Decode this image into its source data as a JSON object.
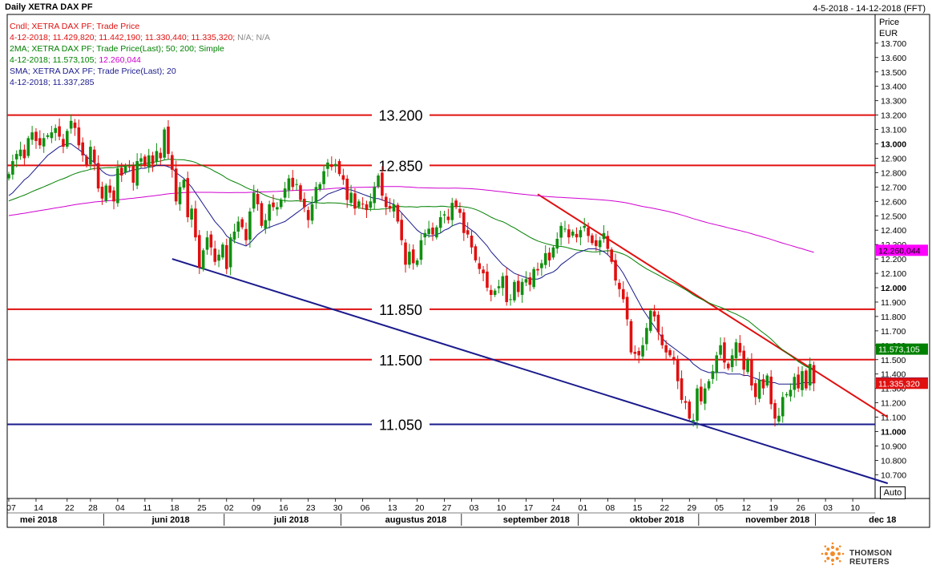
{
  "header": {
    "title": "Daily XETRA DAX PF",
    "date_range": "4-5-2018 - 14-12-2018 (FFT)"
  },
  "legend": {
    "line1": "Cndl; XETRA DAX PF; Trade Price",
    "line2_values": "4-12-2018; 11.429,820; 11.442,190; 11.330,440; 11.335,320;",
    "line2_na": "N/A; N/A",
    "line3": "2MA; XETRA DAX PF; Trade Price(Last);  50;  200; Simple",
    "line4_prefix": "4-12-2018; 11.573,105;",
    "line4_value": "12.260,044",
    "line5": "SMA; XETRA DAX PF; Trade Price(Last);  20",
    "line6": "4-12-2018; 11.337,285"
  },
  "axis": {
    "price_label": "Price",
    "currency": "EUR",
    "auto_label": "Auto"
  },
  "brand": {
    "name": "THOMSON REUTERS"
  },
  "chart_data": {
    "type": "candlestick",
    "y_range": [
      10620,
      13800
    ],
    "y_ticks": [
      {
        "v": 13700,
        "t": "13.700"
      },
      {
        "v": 13600,
        "t": "13.600"
      },
      {
        "v": 13500,
        "t": "13.500"
      },
      {
        "v": 13400,
        "t": "13.400"
      },
      {
        "v": 13300,
        "t": "13.300"
      },
      {
        "v": 13200,
        "t": "13.200"
      },
      {
        "v": 13100,
        "t": "13.100"
      },
      {
        "v": 13000,
        "t": "13.000",
        "bold": true
      },
      {
        "v": 12900,
        "t": "12.900"
      },
      {
        "v": 12800,
        "t": "12.800"
      },
      {
        "v": 12700,
        "t": "12.700"
      },
      {
        "v": 12600,
        "t": "12.600"
      },
      {
        "v": 12500,
        "t": "12.500"
      },
      {
        "v": 12400,
        "t": "12.400"
      },
      {
        "v": 12300,
        "t": "12.300"
      },
      {
        "v": 12200,
        "t": "12.200"
      },
      {
        "v": 12100,
        "t": "12.100"
      },
      {
        "v": 12000,
        "t": "12.000",
        "bold": true
      },
      {
        "v": 11900,
        "t": "11.900"
      },
      {
        "v": 11800,
        "t": "11.800"
      },
      {
        "v": 11700,
        "t": "11.700"
      },
      {
        "v": 11600,
        "t": "11.600"
      },
      {
        "v": 11500,
        "t": "11.500"
      },
      {
        "v": 11400,
        "t": "11.400"
      },
      {
        "v": 11300,
        "t": "11.300"
      },
      {
        "v": 11200,
        "t": "11.200"
      },
      {
        "v": 11100,
        "t": "11.100"
      },
      {
        "v": 11000,
        "t": "11.000",
        "bold": true
      },
      {
        "v": 10900,
        "t": "10.900"
      },
      {
        "v": 10800,
        "t": "10.800"
      },
      {
        "v": 10700,
        "t": "10.700"
      }
    ],
    "x_day_ticks": [
      {
        "d": 0,
        "t": "07"
      },
      {
        "d": 7,
        "t": "14"
      },
      {
        "d": 15,
        "t": "22"
      },
      {
        "d": 21,
        "t": "28"
      },
      {
        "d": 28,
        "t": "04"
      },
      {
        "d": 35,
        "t": "11"
      },
      {
        "d": 42,
        "t": "18"
      },
      {
        "d": 49,
        "t": "25"
      },
      {
        "d": 56,
        "t": "02"
      },
      {
        "d": 63,
        "t": "09"
      },
      {
        "d": 70,
        "t": "16"
      },
      {
        "d": 77,
        "t": "23"
      },
      {
        "d": 84,
        "t": "30"
      },
      {
        "d": 91,
        "t": "06"
      },
      {
        "d": 98,
        "t": "13"
      },
      {
        "d": 105,
        "t": "20"
      },
      {
        "d": 112,
        "t": "27"
      },
      {
        "d": 119,
        "t": "03"
      },
      {
        "d": 126,
        "t": "10"
      },
      {
        "d": 133,
        "t": "17"
      },
      {
        "d": 140,
        "t": "24"
      },
      {
        "d": 147,
        "t": "01"
      },
      {
        "d": 154,
        "t": "08"
      },
      {
        "d": 161,
        "t": "15"
      },
      {
        "d": 168,
        "t": "22"
      },
      {
        "d": 175,
        "t": "29"
      },
      {
        "d": 182,
        "t": "05"
      },
      {
        "d": 189,
        "t": "12"
      },
      {
        "d": 196,
        "t": "19"
      },
      {
        "d": 203,
        "t": "26"
      },
      {
        "d": 210,
        "t": "03"
      },
      {
        "d": 217,
        "t": "10"
      }
    ],
    "x_months": [
      {
        "d": 6,
        "t": "mei 2018"
      },
      {
        "d": 40,
        "t": "juni 2018"
      },
      {
        "d": 71,
        "t": "juli 2018"
      },
      {
        "d": 103,
        "t": "augustus 2018"
      },
      {
        "d": 134,
        "t": "september 2018"
      },
      {
        "d": 165,
        "t": "oktober 2018"
      },
      {
        "d": 196,
        "t": "november 2018"
      },
      {
        "d": 223,
        "t": "dec 18"
      }
    ],
    "x_month_dividers": [
      25,
      56,
      86,
      117,
      147,
      178,
      208
    ],
    "support_resistance": [
      {
        "value": 13200,
        "label": "13.200",
        "color": "#e01010"
      },
      {
        "value": 12850,
        "label": "12.850",
        "color": "#e01010"
      },
      {
        "value": 11850,
        "label": "11.850",
        "color": "#e01010"
      },
      {
        "value": 11500,
        "label": "11.500",
        "color": "#e01010"
      },
      {
        "value": 11050,
        "label": "11.050",
        "color": "#1a1a8c"
      }
    ],
    "trendlines": [
      {
        "color": "#e01010",
        "from": {
          "d": 136,
          "v": 12650
        },
        "to": {
          "d": 226,
          "v": 11100
        }
      },
      {
        "color": "#1a1a8c",
        "from": {
          "d": 42,
          "v": 12200
        },
        "to": {
          "d": 226,
          "v": 10640
        }
      }
    ],
    "markers": [
      {
        "value": 12260.044,
        "label": "12.260,044",
        "bg": "#ff00ff",
        "fg": "#000000"
      },
      {
        "value": 11573.105,
        "label": "11.573,105",
        "bg": "#008000",
        "fg": "#ffffff"
      },
      {
        "value": 11337.285,
        "label": "11.337,285",
        "bg": "#1a1a8c",
        "fg": "#ffffff"
      },
      {
        "value": 11335.32,
        "label": "11.335,320",
        "bg": "#e01010",
        "fg": "#ffffff"
      }
    ],
    "closes": [
      12790,
      12880,
      12930,
      12960,
      12900,
      13040,
      13080,
      13020,
      12990,
      13040,
      13060,
      13080,
      13110,
      13050,
      12980,
      13090,
      13160,
      13110,
      12990,
      12920,
      12850,
      12980,
      12870,
      12690,
      12620,
      12710,
      12660,
      12600,
      12830,
      12780,
      12850,
      12840,
      12730,
      12880,
      12900,
      12850,
      12920,
      12860,
      12950,
      12900,
      13100,
      12930,
      12820,
      12600,
      12700,
      12750,
      12490,
      12550,
      12350,
      12140,
      12260,
      12350,
      12280,
      12180,
      12230,
      12300,
      12130,
      12350,
      12390,
      12460,
      12420,
      12330,
      12530,
      12660,
      12580,
      12430,
      12470,
      12580,
      12560,
      12560,
      12610,
      12690,
      12760,
      12700,
      12720,
      12610,
      12560,
      12470,
      12580,
      12700,
      12720,
      12810,
      12870,
      12840,
      12860,
      12790,
      12750,
      12610,
      12660,
      12550,
      12600,
      12580,
      12540,
      12600,
      12700,
      12780,
      12640,
      12560,
      12550,
      12580,
      12460,
      12330,
      12160,
      12250,
      12170,
      12190,
      12330,
      12380,
      12410,
      12370,
      12420,
      12490,
      12510,
      12470,
      12590,
      12560,
      12520,
      12380,
      12370,
      12280,
      12190,
      12130,
      12100,
      12000,
      11950,
      11980,
      12010,
      12080,
      11900,
      11920,
      12040,
      11970,
      12040,
      12060,
      12020,
      12130,
      12120,
      12170,
      12240,
      12190,
      12280,
      12340,
      12430,
      12410,
      12350,
      12390,
      12350,
      12400,
      12430,
      12360,
      12310,
      12290,
      12330,
      12380,
      12270,
      12180,
      12050,
      11990,
      11920,
      11780,
      11550,
      11540,
      11530,
      11600,
      11720,
      11840,
      11800,
      11690,
      11600,
      11550,
      11530,
      11500,
      11350,
      11220,
      11200,
      11090,
      11080,
      11300,
      11210,
      11300,
      11350,
      11420,
      11530,
      11600,
      11480,
      11440,
      11530,
      11620,
      11550,
      11430,
      11500,
      11320,
      11240,
      11360,
      11300,
      11390,
      11190,
      11090,
      11110,
      11240,
      11260,
      11290,
      11380,
      11300,
      11420,
      11300,
      11470,
      11335
    ],
    "ma20": [
      12640,
      12660,
      12690,
      12720,
      12750,
      12770,
      12800,
      12830,
      12860,
      12890,
      12920,
      12940,
      12960,
      12980,
      12990,
      13000,
      13000,
      12980,
      12960,
      12940,
      12910,
      12890,
      12870,
      12840,
      12810,
      12790,
      12780,
      12780,
      12790,
      12790,
      12800,
      12810,
      12820,
      12820,
      12830,
      12830,
      12840,
      12840,
      12850,
      12850,
      12850,
      12840,
      12830,
      12800,
      12780,
      12760,
      12730,
      12700,
      12660,
      12620,
      12580,
      12540,
      12500,
      12460,
      12430,
      12400,
      12360,
      12340,
      12320,
      12310,
      12300,
      12290,
      12310,
      12340,
      12370,
      12390,
      12410,
      12420,
      12430,
      12440,
      12450,
      12460,
      12480,
      12500,
      12520,
      12540,
      12560,
      12580,
      12590,
      12600,
      12610,
      12630,
      12650,
      12660,
      12670,
      12680,
      12690,
      12680,
      12680,
      12670,
      12660,
      12650,
      12640,
      12630,
      12620,
      12620,
      12610,
      12600,
      12590,
      12580,
      12550,
      12520,
      12490,
      12460,
      12430,
      12400,
      12380,
      12370,
      12360,
      12360,
      12370,
      12380,
      12400,
      12410,
      12430,
      12440,
      12450,
      12440,
      12420,
      12400,
      12380,
      12350,
      12320,
      12290,
      12250,
      12220,
      12190,
      12160,
      12140,
      12120,
      12100,
      12090,
      12080,
      12070,
      12060,
      12060,
      12060,
      12070,
      12090,
      12100,
      12110,
      12130,
      12160,
      12180,
      12200,
      12220,
      12240,
      12250,
      12260,
      12270,
      12270,
      12270,
      12260,
      12250,
      12230,
      12200,
      12170,
      12140,
      12100,
      12050,
      12000,
      11950,
      11900,
      11850,
      11810,
      11770,
      11730,
      11690,
      11650,
      11620,
      11600,
      11580,
      11560,
      11540,
      11520,
      11500,
      11470,
      11450,
      11430,
      11420,
      11410,
      11410,
      11410,
      11410,
      11410,
      11400,
      11400,
      11400,
      11400,
      11390,
      11390,
      11380,
      11370,
      11360,
      11350,
      11350,
      11340,
      11340,
      11330,
      11330,
      11330,
      11330,
      11330,
      11330,
      11340,
      11340,
      11340,
      11337
    ]
  }
}
